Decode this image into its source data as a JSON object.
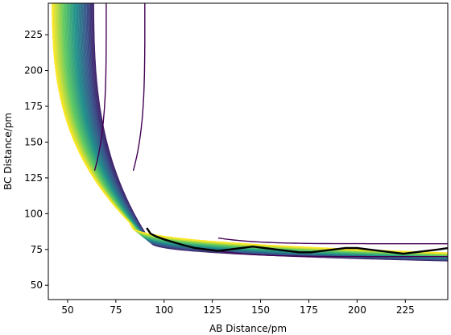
{
  "chart_data": {
    "type": "contour",
    "xlabel": "AB Distance/pm",
    "ylabel": "BC Distance/pm",
    "xlim": [
      40,
      247
    ],
    "ylim": [
      40,
      247
    ],
    "xticks": [
      50,
      75,
      100,
      125,
      150,
      175,
      200,
      225
    ],
    "yticks": [
      50,
      75,
      100,
      125,
      150,
      175,
      200,
      225
    ],
    "xtick_labels": [
      "50",
      "75",
      "100",
      "125",
      "150",
      "175",
      "200",
      "225"
    ],
    "ytick_labels": [
      "50",
      "75",
      "100",
      "125",
      "150",
      "175",
      "200",
      "225"
    ],
    "grid": false,
    "colormap": [
      "#440154",
      "#3b528b",
      "#21918c",
      "#5ec962",
      "#fde725"
    ],
    "surface": {
      "description": "LEPS-like potential energy surface for A+BC",
      "well_distance": 74,
      "inner_wall": 28,
      "levels": 40
    },
    "trajectory": {
      "color": "#000000",
      "x": [
        91,
        93,
        96,
        100,
        105,
        110,
        116,
        122,
        128,
        134,
        140,
        146,
        152,
        158,
        164,
        170,
        176,
        182,
        188,
        194,
        200,
        206,
        212,
        218,
        224,
        230,
        236,
        242,
        247
      ],
      "y": [
        90,
        86,
        84,
        82,
        80,
        78,
        76,
        75,
        74,
        75,
        76,
        77,
        76,
        75,
        74,
        73,
        73,
        74,
        75,
        76,
        76,
        75,
        74,
        73,
        72,
        73,
        74,
        75,
        76
      ]
    }
  }
}
